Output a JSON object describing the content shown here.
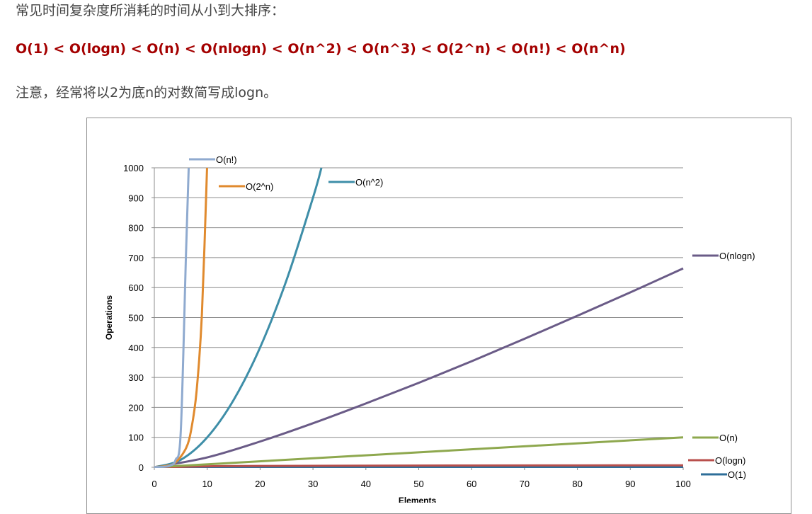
{
  "heading": "常见时间复杂度所消耗的时间从小到大排序：",
  "order": "O(1) < O(logn) < O(n) < O(nlogn) < O(n^2) < O(n^3) < O(2^n) < O(n!) < O(n^n)",
  "note": "注意，经常将以2为底n的对数简写成logn。",
  "chart_data": {
    "type": "line",
    "xlabel": "Elements",
    "ylabel": "Operations",
    "xlim": [
      0,
      100
    ],
    "ylim": [
      0,
      1000
    ],
    "x_ticks": [
      "0",
      "10",
      "20",
      "30",
      "40",
      "50",
      "60",
      "70",
      "80",
      "90",
      "100"
    ],
    "y_ticks": [
      "0",
      "100",
      "200",
      "300",
      "400",
      "500",
      "600",
      "700",
      "800",
      "900",
      "1000"
    ],
    "grid": "horizontal",
    "legend": "inline labels",
    "series": [
      {
        "name": "O(n!)",
        "color": "#8faacf",
        "x": [
          0,
          1,
          2,
          3,
          4,
          5,
          6,
          6.5
        ],
        "y": [
          1,
          1,
          2,
          6,
          24,
          120,
          720,
          1000
        ]
      },
      {
        "name": "O(2^n)",
        "color": "#e08a2e",
        "x": [
          0,
          2,
          4,
          6,
          7,
          8,
          9,
          9.97
        ],
        "y": [
          1,
          4,
          16,
          64,
          128,
          256,
          512,
          1000
        ]
      },
      {
        "name": "O(n^2)",
        "color": "#3e8ea8",
        "x": [
          0,
          5,
          10,
          15,
          20,
          25,
          30,
          31.6
        ],
        "y": [
          0,
          25,
          100,
          225,
          400,
          625,
          900,
          1000
        ]
      },
      {
        "name": "O(nlogn)",
        "color": "#6a5b87",
        "x": [
          0,
          10,
          20,
          30,
          40,
          50,
          60,
          70,
          80,
          90,
          100
        ],
        "y": [
          0,
          33,
          86,
          147,
          213,
          282,
          354,
          429,
          506,
          584,
          664
        ]
      },
      {
        "name": "O(n)",
        "color": "#8ea84e",
        "x": [
          0,
          100
        ],
        "y": [
          0,
          100
        ]
      },
      {
        "name": "O(logn)",
        "color": "#b9504d",
        "x": [
          1,
          10,
          20,
          40,
          60,
          80,
          100
        ],
        "y": [
          0,
          3.3,
          4.3,
          5.3,
          5.9,
          6.3,
          6.6
        ]
      },
      {
        "name": "O(1)",
        "color": "#2e6e99",
        "x": [
          0,
          100
        ],
        "y": [
          1,
          1
        ]
      }
    ]
  }
}
